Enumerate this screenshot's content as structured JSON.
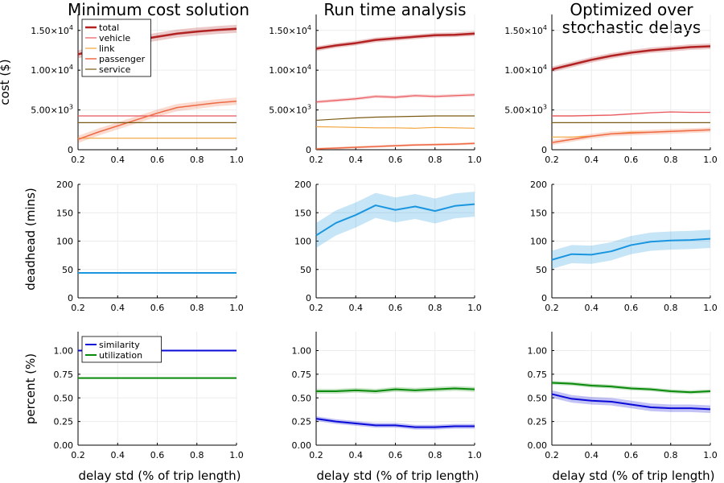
{
  "figure": {
    "column_titles": [
      [
        "Minimum cost solution"
      ],
      [
        "Run time analysis"
      ],
      [
        "Optimized over",
        "stochastic delays"
      ]
    ],
    "xlabel": "delay std (% of trip length)",
    "row_ylabels": [
      "cost ($)",
      "deadhead (mins)",
      "percent (%)"
    ]
  },
  "chart_data": [
    {
      "type": "line",
      "panel": "row1-col1",
      "ylabel": "cost ($)",
      "xlim": [
        0.2,
        1.0
      ],
      "ylim": [
        0,
        17000
      ],
      "x": [
        0.2,
        0.3,
        0.4,
        0.5,
        0.6,
        0.7,
        0.8,
        0.9,
        1.0
      ],
      "xticks": [
        0.2,
        0.4,
        0.6,
        0.8,
        1.0
      ],
      "xtick_labels": [
        "0.2",
        "0.4",
        "0.6",
        "0.8",
        "1.0"
      ],
      "yticks": [
        0,
        5000,
        10000,
        15000
      ],
      "ytick_labels": [
        {
          "mantissa": "0",
          "exp": ""
        },
        {
          "mantissa": "5.00×10",
          "exp": "3"
        },
        {
          "mantissa": "1.00×10",
          "exp": "4"
        },
        {
          "mantissa": "1.50×10",
          "exp": "4"
        }
      ],
      "legend": {
        "position": "top-left",
        "entries": [
          "total",
          "vehicle",
          "link",
          "passenger",
          "service"
        ]
      },
      "series": [
        {
          "name": "total",
          "color": "#b22222",
          "width": 2.5,
          "values": [
            12000,
            12600,
            13200,
            13800,
            14200,
            14600,
            14850,
            15050,
            15200
          ],
          "band": 500
        },
        {
          "name": "vehicle",
          "color": "#e8585d",
          "width": 1.2,
          "values": [
            4250,
            4250,
            4250,
            4250,
            4250,
            4250,
            4250,
            4250,
            4250
          ],
          "band": 0
        },
        {
          "name": "link",
          "color": "#f2a33a",
          "width": 1.2,
          "values": [
            1450,
            1450,
            1450,
            1450,
            1450,
            1450,
            1450,
            1450,
            1450
          ],
          "band": 0
        },
        {
          "name": "passenger",
          "color": "#ee6a45",
          "width": 1.5,
          "values": [
            1300,
            2200,
            3000,
            3800,
            4600,
            5300,
            5600,
            5900,
            6100
          ],
          "band": 450
        },
        {
          "name": "service",
          "color": "#7a5a12",
          "width": 1.2,
          "values": [
            3400,
            3400,
            3400,
            3400,
            3400,
            3400,
            3400,
            3400,
            3400
          ],
          "band": 0
        }
      ]
    },
    {
      "type": "line",
      "panel": "row1-col2",
      "xlim": [
        0.2,
        1.0
      ],
      "ylim": [
        0,
        17000
      ],
      "x": [
        0.2,
        0.3,
        0.4,
        0.5,
        0.6,
        0.7,
        0.8,
        0.9,
        1.0
      ],
      "xticks": [
        0.2,
        0.4,
        0.6,
        0.8,
        1.0
      ],
      "xtick_labels": [
        "0.2",
        "0.4",
        "0.6",
        "0.8",
        "1.0"
      ],
      "yticks": [
        0,
        5000,
        10000,
        15000
      ],
      "ytick_labels": [
        {
          "mantissa": "0",
          "exp": ""
        },
        {
          "mantissa": "5.00×10",
          "exp": "3"
        },
        {
          "mantissa": "1.00×10",
          "exp": "4"
        },
        {
          "mantissa": "1.50×10",
          "exp": "4"
        }
      ],
      "series": [
        {
          "name": "total",
          "color": "#b22222",
          "width": 2.5,
          "values": [
            12700,
            13100,
            13400,
            13800,
            14000,
            14200,
            14400,
            14450,
            14600
          ],
          "band": 300
        },
        {
          "name": "vehicle",
          "color": "#e8585d",
          "width": 1.2,
          "values": [
            6000,
            6200,
            6400,
            6700,
            6600,
            6800,
            6700,
            6800,
            6900
          ],
          "band": 200
        },
        {
          "name": "link",
          "color": "#f2a33a",
          "width": 1.2,
          "values": [
            2900,
            2850,
            2800,
            2750,
            2750,
            2700,
            2800,
            2750,
            2700
          ],
          "band": 0
        },
        {
          "name": "passenger",
          "color": "#ee6a45",
          "width": 1.5,
          "values": [
            100,
            200,
            300,
            400,
            500,
            600,
            650,
            700,
            800
          ],
          "band": 150
        },
        {
          "name": "service",
          "color": "#7a5a12",
          "width": 1.2,
          "values": [
            3700,
            3850,
            4000,
            4100,
            4150,
            4200,
            4250,
            4250,
            4250
          ],
          "band": 0
        }
      ]
    },
    {
      "type": "line",
      "panel": "row1-col3",
      "xlim": [
        0.2,
        1.0
      ],
      "ylim": [
        0,
        17000
      ],
      "x": [
        0.2,
        0.3,
        0.4,
        0.5,
        0.6,
        0.7,
        0.8,
        0.9,
        1.0
      ],
      "xticks": [
        0.2,
        0.4,
        0.6,
        0.8,
        1.0
      ],
      "xtick_labels": [
        "0.2",
        "0.4",
        "0.6",
        "0.8",
        "1.0"
      ],
      "yticks": [
        0,
        5000,
        10000,
        15000
      ],
      "ytick_labels": [
        {
          "mantissa": "0",
          "exp": ""
        },
        {
          "mantissa": "5.00×10",
          "exp": "3"
        },
        {
          "mantissa": "1.00×10",
          "exp": "4"
        },
        {
          "mantissa": "1.50×10",
          "exp": "4"
        }
      ],
      "series": [
        {
          "name": "total",
          "color": "#b22222",
          "width": 2.5,
          "values": [
            10100,
            10700,
            11300,
            11800,
            12200,
            12500,
            12700,
            12900,
            13000
          ],
          "band": 350
        },
        {
          "name": "vehicle",
          "color": "#e8585d",
          "width": 1.2,
          "values": [
            4250,
            4250,
            4300,
            4350,
            4500,
            4650,
            4750,
            4700,
            4700
          ],
          "band": 100
        },
        {
          "name": "link",
          "color": "#f2a33a",
          "width": 1.2,
          "values": [
            1600,
            1600,
            1700,
            2000,
            2200,
            2200,
            2300,
            2400,
            2500
          ],
          "band": 0
        },
        {
          "name": "passenger",
          "color": "#ee6a45",
          "width": 1.5,
          "values": [
            900,
            1300,
            1700,
            2000,
            2100,
            2200,
            2300,
            2400,
            2500
          ],
          "band": 300
        },
        {
          "name": "service",
          "color": "#7a5a12",
          "width": 1.2,
          "values": [
            3400,
            3400,
            3400,
            3400,
            3400,
            3400,
            3400,
            3400,
            3400
          ],
          "band": 0
        }
      ]
    },
    {
      "type": "line",
      "panel": "row2-col1",
      "ylabel": "deadhead (mins)",
      "xlim": [
        0.2,
        1.0
      ],
      "ylim": [
        0,
        200
      ],
      "x": [
        0.2,
        0.3,
        0.4,
        0.5,
        0.6,
        0.7,
        0.8,
        0.9,
        1.0
      ],
      "xticks": [
        0.2,
        0.4,
        0.6,
        0.8,
        1.0
      ],
      "xtick_labels": [
        "0.2",
        "0.4",
        "0.6",
        "0.8",
        "1.0"
      ],
      "yticks": [
        0,
        50,
        100,
        150,
        200
      ],
      "ytick_labels": [
        {
          "mantissa": "0",
          "exp": ""
        },
        {
          "mantissa": "50",
          "exp": ""
        },
        {
          "mantissa": "100",
          "exp": ""
        },
        {
          "mantissa": "150",
          "exp": ""
        },
        {
          "mantissa": "200",
          "exp": ""
        }
      ],
      "series": [
        {
          "name": "deadhead",
          "color": "#1a96e0",
          "width": 2,
          "values": [
            44,
            44,
            44,
            44,
            44,
            44,
            44,
            44,
            44
          ],
          "band": 0
        }
      ]
    },
    {
      "type": "line",
      "panel": "row2-col2",
      "xlim": [
        0.2,
        1.0
      ],
      "ylim": [
        0,
        200
      ],
      "x": [
        0.2,
        0.3,
        0.4,
        0.5,
        0.6,
        0.7,
        0.8,
        0.9,
        1.0
      ],
      "xticks": [
        0.2,
        0.4,
        0.6,
        0.8,
        1.0
      ],
      "xtick_labels": [
        "0.2",
        "0.4",
        "0.6",
        "0.8",
        "1.0"
      ],
      "yticks": [
        0,
        50,
        100,
        150,
        200
      ],
      "ytick_labels": [
        {
          "mantissa": "0",
          "exp": ""
        },
        {
          "mantissa": "50",
          "exp": ""
        },
        {
          "mantissa": "100",
          "exp": ""
        },
        {
          "mantissa": "150",
          "exp": ""
        },
        {
          "mantissa": "200",
          "exp": ""
        }
      ],
      "series": [
        {
          "name": "deadhead",
          "color": "#1a96e0",
          "width": 2,
          "values": [
            110,
            132,
            146,
            163,
            155,
            161,
            153,
            162,
            165
          ],
          "band": 22
        }
      ]
    },
    {
      "type": "line",
      "panel": "row2-col3",
      "xlim": [
        0.2,
        1.0
      ],
      "ylim": [
        0,
        200
      ],
      "x": [
        0.2,
        0.3,
        0.4,
        0.5,
        0.6,
        0.7,
        0.8,
        0.9,
        1.0
      ],
      "xticks": [
        0.2,
        0.4,
        0.6,
        0.8,
        1.0
      ],
      "xtick_labels": [
        "0.2",
        "0.4",
        "0.6",
        "0.8",
        "1.0"
      ],
      "yticks": [
        0,
        50,
        100,
        150,
        200
      ],
      "ytick_labels": [
        {
          "mantissa": "0",
          "exp": ""
        },
        {
          "mantissa": "50",
          "exp": ""
        },
        {
          "mantissa": "100",
          "exp": ""
        },
        {
          "mantissa": "150",
          "exp": ""
        },
        {
          "mantissa": "200",
          "exp": ""
        }
      ],
      "series": [
        {
          "name": "deadhead",
          "color": "#1a96e0",
          "width": 2,
          "values": [
            67,
            77,
            76,
            82,
            93,
            99,
            101,
            102,
            104
          ],
          "band": 16
        }
      ]
    },
    {
      "type": "line",
      "panel": "row3-col1",
      "ylabel": "percent (%)",
      "xlim": [
        0.2,
        1.0
      ],
      "ylim": [
        0,
        1.2
      ],
      "x": [
        0.2,
        0.3,
        0.4,
        0.5,
        0.6,
        0.7,
        0.8,
        0.9,
        1.0
      ],
      "xticks": [
        0.2,
        0.4,
        0.6,
        0.8,
        1.0
      ],
      "xtick_labels": [
        "0.2",
        "0.4",
        "0.6",
        "0.8",
        "1.0"
      ],
      "yticks": [
        0,
        0.25,
        0.5,
        0.75,
        1.0
      ],
      "ytick_labels": [
        {
          "mantissa": "0.00",
          "exp": ""
        },
        {
          "mantissa": "0.25",
          "exp": ""
        },
        {
          "mantissa": "0.50",
          "exp": ""
        },
        {
          "mantissa": "0.75",
          "exp": ""
        },
        {
          "mantissa": "1.00",
          "exp": ""
        }
      ],
      "legend": {
        "position": "top-left",
        "entries": [
          "similarity",
          "utilization"
        ]
      },
      "series": [
        {
          "name": "similarity",
          "color": "#0a0ad8",
          "width": 2,
          "values": [
            1.0,
            1.0,
            1.0,
            1.0,
            1.0,
            1.0,
            1.0,
            1.0,
            1.0
          ],
          "band": 0
        },
        {
          "name": "utilization",
          "color": "#0a8a0a",
          "width": 2,
          "values": [
            0.71,
            0.71,
            0.71,
            0.71,
            0.71,
            0.71,
            0.71,
            0.71,
            0.71
          ],
          "band": 0
        }
      ]
    },
    {
      "type": "line",
      "panel": "row3-col2",
      "xlim": [
        0.2,
        1.0
      ],
      "ylim": [
        0,
        1.2
      ],
      "x": [
        0.2,
        0.3,
        0.4,
        0.5,
        0.6,
        0.7,
        0.8,
        0.9,
        1.0
      ],
      "xticks": [
        0.2,
        0.4,
        0.6,
        0.8,
        1.0
      ],
      "xtick_labels": [
        "0.2",
        "0.4",
        "0.6",
        "0.8",
        "1.0"
      ],
      "yticks": [
        0,
        0.25,
        0.5,
        0.75,
        1.0
      ],
      "ytick_labels": [
        {
          "mantissa": "0.00",
          "exp": ""
        },
        {
          "mantissa": "0.25",
          "exp": ""
        },
        {
          "mantissa": "0.50",
          "exp": ""
        },
        {
          "mantissa": "0.75",
          "exp": ""
        },
        {
          "mantissa": "1.00",
          "exp": ""
        }
      ],
      "series": [
        {
          "name": "similarity",
          "color": "#0a0ad8",
          "width": 2,
          "values": [
            0.28,
            0.25,
            0.23,
            0.21,
            0.21,
            0.19,
            0.19,
            0.2,
            0.2
          ],
          "band": 0.025
        },
        {
          "name": "utilization",
          "color": "#0a8a0a",
          "width": 2,
          "values": [
            0.57,
            0.57,
            0.58,
            0.57,
            0.59,
            0.58,
            0.59,
            0.6,
            0.59
          ],
          "band": 0.025
        }
      ]
    },
    {
      "type": "line",
      "panel": "row3-col3",
      "xlim": [
        0.2,
        1.0
      ],
      "ylim": [
        0,
        1.2
      ],
      "x": [
        0.2,
        0.3,
        0.4,
        0.5,
        0.6,
        0.7,
        0.8,
        0.9,
        1.0
      ],
      "xticks": [
        0.2,
        0.4,
        0.6,
        0.8,
        1.0
      ],
      "xtick_labels": [
        "0.2",
        "0.4",
        "0.6",
        "0.8",
        "1.0"
      ],
      "yticks": [
        0,
        0.25,
        0.5,
        0.75,
        1.0
      ],
      "ytick_labels": [
        {
          "mantissa": "0.00",
          "exp": ""
        },
        {
          "mantissa": "0.25",
          "exp": ""
        },
        {
          "mantissa": "0.50",
          "exp": ""
        },
        {
          "mantissa": "0.75",
          "exp": ""
        },
        {
          "mantissa": "1.00",
          "exp": ""
        }
      ],
      "series": [
        {
          "name": "similarity",
          "color": "#0a0ad8",
          "width": 2,
          "values": [
            0.54,
            0.49,
            0.47,
            0.46,
            0.43,
            0.4,
            0.39,
            0.39,
            0.38
          ],
          "band": 0.04
        },
        {
          "name": "utilization",
          "color": "#0a8a0a",
          "width": 2,
          "values": [
            0.66,
            0.65,
            0.63,
            0.62,
            0.6,
            0.59,
            0.57,
            0.56,
            0.57
          ],
          "band": 0.02
        }
      ]
    }
  ]
}
